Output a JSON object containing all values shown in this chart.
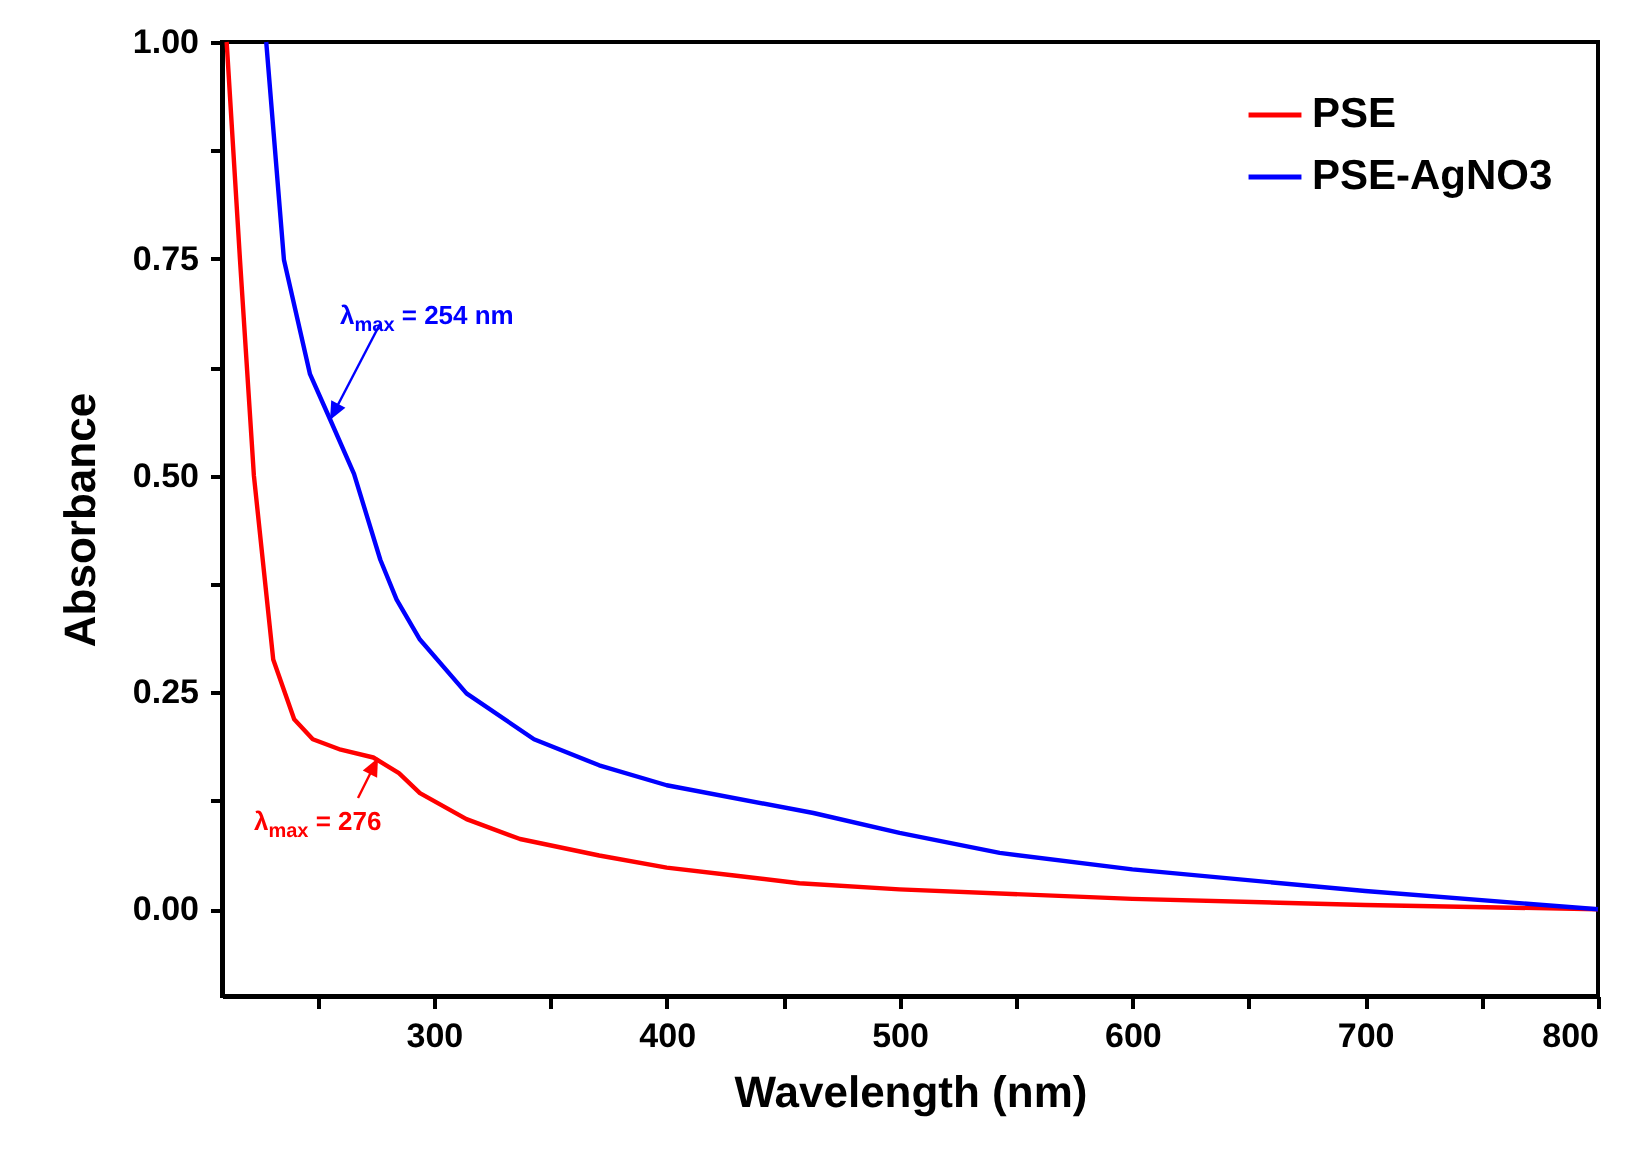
{
  "chart_data": {
    "type": "line",
    "xlabel": "Wavelength (nm)",
    "ylabel": "Absorbance",
    "xlim": [
      209,
      800
    ],
    "ylim": [
      -0.1,
      1
    ],
    "xticks": [
      {
        "value": 250,
        "label": null
      },
      300,
      {
        "value": 350,
        "label": null
      },
      400,
      {
        "value": 450,
        "label": null
      },
      500,
      {
        "value": 550,
        "label": null
      },
      600,
      {
        "value": 650,
        "label": null
      },
      700,
      {
        "value": 750,
        "label": null
      },
      800
    ],
    "yticks": [
      {
        "value": 0,
        "label": "0.00"
      },
      {
        "value": 0.125,
        "label": null
      },
      {
        "value": 0.25,
        "label": "0.25"
      },
      {
        "value": 0.375,
        "label": null
      },
      {
        "value": 0.5,
        "label": "0.50"
      },
      {
        "value": 0.625,
        "label": null
      },
      {
        "value": 0.75,
        "label": "0.75"
      },
      {
        "value": 0.875,
        "label": null
      },
      {
        "value": 1,
        "label": "1.00"
      }
    ],
    "series": [
      {
        "name": "PSE",
        "color": "#ff0000",
        "x": [
          211,
          216.7,
          222.7,
          227,
          231,
          240,
          248,
          260,
          274,
          285,
          294,
          314,
          337,
          371,
          400,
          429,
          457,
          500,
          600,
          700,
          800
        ],
        "values": [
          1.0,
          0.75,
          0.5,
          0.39,
          0.288,
          0.219,
          0.196,
          0.184,
          0.175,
          0.157,
          0.134,
          0.104,
          0.081,
          0.062,
          0.048,
          0.039,
          0.03,
          0.023,
          0.012,
          0.005,
          0.0
        ]
      },
      {
        "name": "PSE-AgNO3",
        "color": "#0000ff",
        "x": [
          228,
          235.6,
          246.8,
          255.4,
          265.7,
          277,
          284,
          294,
          314,
          343,
          371,
          400,
          463,
          500,
          543,
          600,
          700,
          800
        ],
        "values": [
          1.0,
          0.749,
          0.617,
          0.565,
          0.502,
          0.403,
          0.357,
          0.311,
          0.249,
          0.196,
          0.166,
          0.143,
          0.111,
          0.088,
          0.065,
          0.046,
          0.021,
          0.0
        ]
      }
    ],
    "annotations": [
      {
        "text": "λ$_{max}$ = 254 nm",
        "x": 255.4,
        "y": 0.565
      },
      {
        "text": "λ$_{max}$ = 276",
        "x": 276,
        "y": 0.175
      }
    ],
    "legend": "top right",
    "grid": false,
    "marker": "none",
    "line_style": "solid"
  }
}
